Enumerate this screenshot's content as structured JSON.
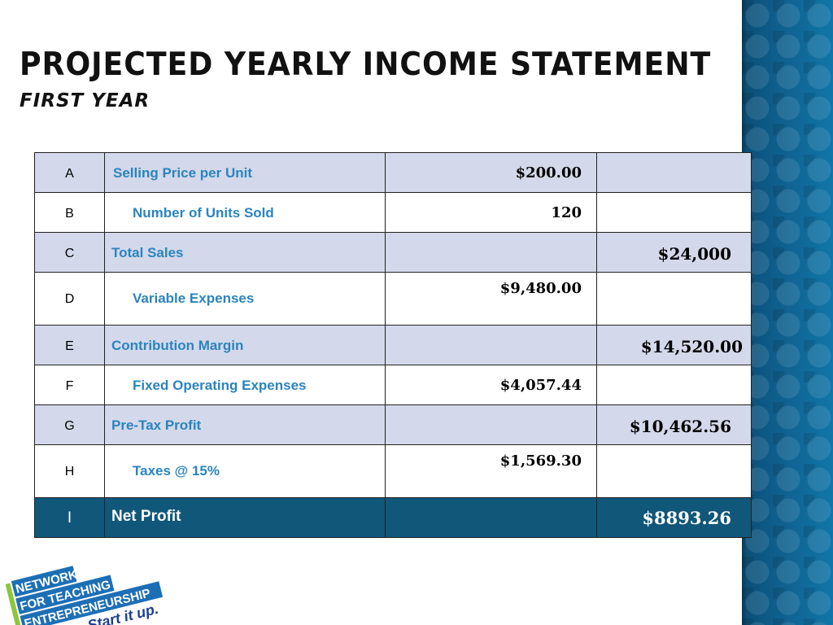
{
  "slide": {
    "title": "PROJECTED YEARLY INCOME STATEMENT",
    "subtitle": "FIRST YEAR"
  },
  "table": {
    "rows": [
      {
        "letter": "A",
        "label": "Selling Price per Unit",
        "amount": "$200.00",
        "total": ""
      },
      {
        "letter": "B",
        "label": "Number of Units Sold",
        "amount": "120",
        "total": ""
      },
      {
        "letter": "C",
        "label": "Total Sales",
        "amount": "",
        "total": "$24,000"
      },
      {
        "letter": "D",
        "label": "Variable Expenses",
        "amount": "$9,480.00",
        "total": ""
      },
      {
        "letter": "E",
        "label": "Contribution Margin",
        "amount": "",
        "total": "$14,520.00"
      },
      {
        "letter": "F",
        "label": "Fixed Operating Expenses",
        "amount": "$4,057.44",
        "total": ""
      },
      {
        "letter": "G",
        "label": "Pre-Tax Profit",
        "amount": "",
        "total": "$10,462.56"
      },
      {
        "letter": "H",
        "label": "Taxes @ 15%",
        "amount": "$1,569.30",
        "total": ""
      },
      {
        "letter": "I",
        "label": "Net Profit",
        "amount": "",
        "total": "$8893.26"
      }
    ]
  },
  "logo": {
    "line1": "NETWORK",
    "line2": "FOR TEACHING",
    "line3": "ENTREPRENEURSHIP",
    "tagline": "Start it up."
  },
  "colors": {
    "row_shade": "#d3d9ea",
    "label_blue": "#2b84be",
    "total_row": "#10577a",
    "sidebar": "#0f5a86",
    "logo_blue": "#1d6fb5",
    "logo_green": "#8cc63f"
  }
}
